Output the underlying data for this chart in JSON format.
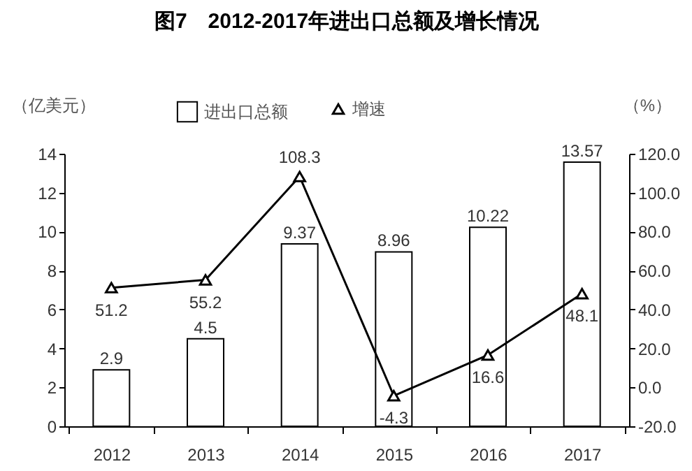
{
  "chart_data": {
    "type": "bar",
    "title": "图7　2012-2017年进出口总额及增长情况",
    "ylabel": "（亿美元）",
    "y2label": "（%）",
    "categories": [
      "2012",
      "2013",
      "2014",
      "2015",
      "2016",
      "2017"
    ],
    "series": [
      {
        "name": "进出口总额",
        "color": "#ffffff",
        "values": [
          2.9,
          4.5,
          9.37,
          8.96,
          10.22,
          13.57
        ]
      },
      {
        "name": "增速",
        "type": "line",
        "axis": "y2",
        "color": "#000000",
        "values": [
          51.2,
          55.2,
          108.3,
          -4.3,
          16.6,
          48.1
        ]
      }
    ],
    "ylim": [
      0,
      14
    ],
    "yticks": [
      0,
      2,
      4,
      6,
      8,
      10,
      12,
      14
    ],
    "y2lim": [
      -20,
      120
    ],
    "y2ticks": [
      {
        "value": -20,
        "label": "-20.0"
      },
      {
        "value": 0,
        "label": "0.0"
      },
      {
        "value": 20,
        "label": "20.0"
      },
      {
        "value": 40,
        "label": "40.0"
      },
      {
        "value": 60,
        "label": "60.0"
      },
      {
        "value": 80,
        "label": "80.0"
      },
      {
        "value": 100,
        "label": "100.0"
      },
      {
        "value": 120,
        "label": "120.0"
      }
    ],
    "data_labels": true,
    "legend": "top left",
    "grid": false,
    "marker": "triangle",
    "line_style": "solid"
  }
}
